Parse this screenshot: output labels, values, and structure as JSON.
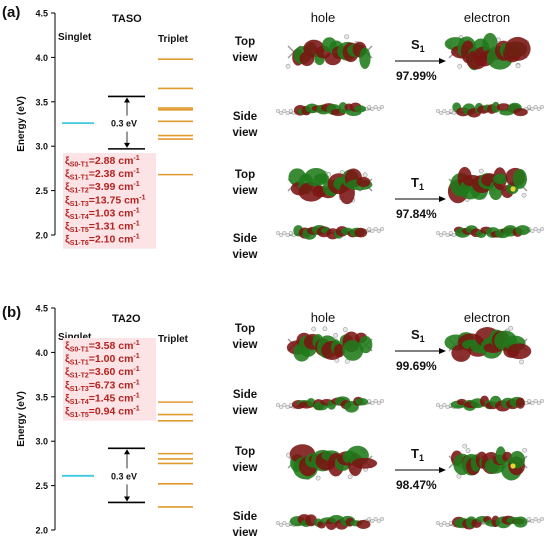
{
  "panels": [
    {
      "panel_label": "(a)",
      "molecule": "TASO",
      "singlet_label": "Singlet",
      "triplet_label": "Triplet",
      "y_axis_label": "Energy (eV)",
      "y_ticks": [
        "2.0",
        "2.5",
        "3.0",
        "3.5",
        "4.0",
        "4.5"
      ],
      "ylim": [
        2.0,
        4.5
      ],
      "singlet_levels": [
        3.26
      ],
      "triplet_levels": [
        3.98,
        3.65,
        3.43,
        3.41,
        3.28,
        3.12,
        3.08,
        2.68
      ],
      "gap_bracket": {
        "upper": 3.56,
        "lower": 2.97,
        "label": "0.3 eV"
      },
      "soc_values": [
        {
          "sub": "S0-T1",
          "value": "=2.88 cm",
          "unit_sup": "-1"
        },
        {
          "sub": "S1-T1",
          "value": "=2.38 cm",
          "unit_sup": "-1"
        },
        {
          "sub": "S1-T2",
          "value": "=3.99 cm",
          "unit_sup": "-1"
        },
        {
          "sub": "S1-T3",
          "value": "=13.75 cm",
          "unit_sup": "-1"
        },
        {
          "sub": "S1-T4",
          "value": "=1.03 cm",
          "unit_sup": "-1"
        },
        {
          "sub": "S1-T5",
          "value": "=1.31 cm",
          "unit_sup": "-1"
        },
        {
          "sub": "S1-T6",
          "value": "=2.10 cm",
          "unit_sup": "-1"
        }
      ],
      "hole_header": "hole",
      "electron_header": "electron",
      "views": [
        "Top view",
        "Side view",
        "Top view",
        "Side view"
      ],
      "transitions": [
        {
          "state": "S",
          "state_sub": "1",
          "percent": "97.99%"
        },
        {
          "state": "T",
          "state_sub": "1",
          "percent": "97.84%"
        }
      ]
    },
    {
      "panel_label": "(b)",
      "molecule": "TA2O",
      "singlet_label": "Singlet",
      "triplet_label": "Triplet",
      "y_axis_label": "Energy (eV)",
      "y_ticks": [
        "2.0",
        "2.5",
        "3.0",
        "3.5",
        "4.0",
        "4.5"
      ],
      "ylim": [
        2.0,
        4.5
      ],
      "singlet_levels": [
        2.61
      ],
      "triplet_levels": [
        3.44,
        3.3,
        3.23,
        2.86,
        2.8,
        2.75,
        2.52,
        2.26
      ],
      "gap_bracket": {
        "upper": 2.92,
        "lower": 2.31,
        "label": "0.3 eV"
      },
      "soc_values": [
        {
          "sub": "S0-T1",
          "value": "=3.58 cm",
          "unit_sup": "-1"
        },
        {
          "sub": "S1-T1",
          "value": "=1.00 cm",
          "unit_sup": "-1"
        },
        {
          "sub": "S1-T2",
          "value": "=3.60 cm",
          "unit_sup": "-1"
        },
        {
          "sub": "S1-T3",
          "value": "=6.73 cm",
          "unit_sup": "-1"
        },
        {
          "sub": "S1-T4",
          "value": "=1.45 cm",
          "unit_sup": "-1"
        },
        {
          "sub": "S1-T5",
          "value": "=0.94 cm",
          "unit_sup": "-1"
        }
      ],
      "hole_header": "hole",
      "electron_header": "electron",
      "views": [
        "Top view",
        "Side view",
        "Top view",
        "Side view"
      ],
      "transitions": [
        {
          "state": "S",
          "state_sub": "1",
          "percent": "99.69%"
        },
        {
          "state": "T",
          "state_sub": "1",
          "percent": "98.47%"
        }
      ]
    }
  ],
  "colors": {
    "singlet": "#3fc8e0",
    "triplet": "#e09a2c",
    "bracket": "#000000",
    "soc_text": "#b3231f",
    "soc_box": "#fbe3e6",
    "orbital_red": "#7a1412",
    "orbital_green": "#1f7a1a"
  }
}
